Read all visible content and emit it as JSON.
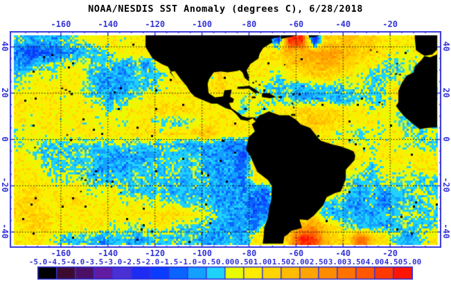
{
  "title": "NOAA/NESDIS SST Anomaly (degrees C), 6/28/2018",
  "colors": {
    "accent_blue": "#3434d8",
    "land": "#000000",
    "background": "#ffffff",
    "gridline": "#000000"
  },
  "axes": {
    "top_tick_labels": [
      "-160",
      "-140",
      "-120",
      "-100",
      "-80",
      "-60",
      "-40",
      "-20"
    ],
    "bottom_tick_labels": [
      "-160",
      "-140",
      "-120",
      "-100",
      "-80",
      "-60",
      "-40",
      "-20"
    ],
    "left_tick_labels": [
      "40",
      "20",
      "0",
      "-20",
      "-40"
    ],
    "right_tick_labels": [
      "40",
      "20",
      "0",
      "-20",
      "-40"
    ],
    "lon_tick_values": [
      -160,
      -140,
      -120,
      -100,
      -80,
      -60,
      -40,
      -20
    ],
    "lat_tick_values": [
      40,
      20,
      0,
      -20,
      -40
    ]
  },
  "colorbar": {
    "labels": [
      "-5.0",
      "-4.5",
      "-4.0",
      "-3.5",
      "-3.0",
      "-2.5",
      "-2.0",
      "-1.5",
      "-1.0",
      "-0.5",
      "0.00",
      "0.50",
      "1.00",
      "1.50",
      "2.00",
      "2.50",
      "3.00",
      "3.50",
      "4.00",
      "4.50",
      "5.00"
    ],
    "colors": [
      "#000000",
      "#3c0c30",
      "#4b1066",
      "#611ba0",
      "#4a30d2",
      "#1e2bf2",
      "#0a3cff",
      "#0a64ff",
      "#13a0ff",
      "#1fd2fc",
      "#e8fb00",
      "#ffec00",
      "#ffd400",
      "#ffbc00",
      "#ffa400",
      "#ff8c00",
      "#ff7200",
      "#ff5800",
      "#ff3a00",
      "#ff1400"
    ],
    "min": -5.0,
    "max": 5.0,
    "step": 0.5
  },
  "chart_data": {
    "type": "heatmap",
    "title": "NOAA/NESDIS SST Anomaly (degrees C), 6/28/2018",
    "date": "6/28/2018",
    "units": "degrees C",
    "lon_range": [
      -180,
      0
    ],
    "lat_range": [
      -45,
      45
    ],
    "grid_cell_degrees": 5,
    "value_encoding": "each char is a palette index 0-9,A-J; cell value = -5 + 0.5*index .. -4.5 + 0.5*index degrees C; rows from 45N to 45S, cols from 180W to 0",
    "anomaly_grid": {
      "cols": 36,
      "rows": 18,
      "rows_chars": [
        "98989AABBABBBBBBBBBBBB6JI5CCDCCBBBBB",
        "76778899ABBBBBBBBBBBBBCDDEEEDCCBBABB",
        "8899AA999898BBBBBBBBBBBCDDEDCBBA9AAA",
        "9AAABB9888999BBB9CBBBB9BBCCBBA99AAAA",
        "ABBBBA988899ABBBBCBBA99989999A9ABAAA",
        "BBBBABA989ABBBBBBBBABA9988989999BAAA",
        "BBBBBBBAABBBCCCBBBB9AABBCCCCBBABA9AA",
        "BABBABAABABB999ABBBBBBBBCDCCBBBAA9AA",
        "ABBBBBBBBBBCBCBCDBBBBBBBBBBAA9AABA9A",
        "AA999999999999888877BBBBBBBBBAABAAA9",
        "BA999998888899998886BBBBBBBBBBABBBBB",
        "BBA99998889999998887BBBBBBBBBA9ABABB",
        "BBBAAA99999999899887BBBBBBBB999A9A99",
        "BCBBBBAAB9999898888877BBBBBB989899A9",
        "CCBBBCBBBABAAA99988877BBBB998897999A",
        "CCCBBBBBBBBBCCCBA98877BBBB9898899A99",
        "BCCBBBBBAAAABA9998887BBBDECB98989999",
        "BBBA99989989999988 98BBBDJIDCCHCB989B"
      ]
    },
    "geo": {
      "land_polygons": {
        "north_america": [
          [
            -124,
            45
          ],
          [
            -124,
            40
          ],
          [
            -121,
            35
          ],
          [
            -117,
            32.5
          ],
          [
            -114.5,
            31.5
          ],
          [
            -112,
            27
          ],
          [
            -109.8,
            23.2
          ],
          [
            -110.5,
            24.5
          ],
          [
            -112.5,
            27.5
          ],
          [
            -113.8,
            29.2
          ],
          [
            -111.5,
            29.5
          ],
          [
            -109,
            26
          ],
          [
            -106.5,
            23
          ],
          [
            -105,
            20.5
          ],
          [
            -103,
            18.5
          ],
          [
            -96,
            15.5
          ],
          [
            -93.5,
            15.5
          ],
          [
            -90,
            13.5
          ],
          [
            -87.5,
            12.8
          ],
          [
            -85.5,
            11
          ],
          [
            -83.5,
            8.5
          ],
          [
            -80.5,
            8
          ],
          [
            -78.5,
            9.2
          ],
          [
            -77.2,
            7.8
          ],
          [
            -77,
            9.2
          ],
          [
            -78.2,
            9.6
          ],
          [
            -81,
            9.5
          ],
          [
            -83,
            10.2
          ],
          [
            -83.8,
            11
          ],
          [
            -87.5,
            13.5
          ],
          [
            -88.5,
            15.8
          ],
          [
            -86.8,
            16
          ],
          [
            -86.4,
            17.5
          ],
          [
            -88,
            18.5
          ],
          [
            -87.4,
            21.5
          ],
          [
            -90.5,
            21.2
          ],
          [
            -91,
            18.6
          ],
          [
            -94.5,
            18.2
          ],
          [
            -97.2,
            20
          ],
          [
            -97.6,
            24
          ],
          [
            -97,
            26
          ],
          [
            -95,
            29
          ],
          [
            -92,
            29.4
          ],
          [
            -89,
            29
          ],
          [
            -85,
            29.6
          ],
          [
            -84,
            30
          ],
          [
            -82.8,
            29
          ],
          [
            -81.8,
            26.5
          ],
          [
            -80.2,
            25.2
          ],
          [
            -80,
            27
          ],
          [
            -81,
            29.8
          ],
          [
            -79.5,
            32.5
          ],
          [
            -76,
            35
          ],
          [
            -75.5,
            37
          ],
          [
            -74,
            39.5
          ],
          [
            -71,
            41.4
          ],
          [
            -70,
            42
          ],
          [
            -70.5,
            43.5
          ],
          [
            -66.5,
            44.4
          ],
          [
            -67,
            45
          ]
        ],
        "nova_scotia": [
          [
            -66.5,
            43.4
          ],
          [
            -63,
            44.2
          ],
          [
            -59.5,
            45
          ],
          [
            -66.5,
            45
          ]
        ],
        "newfoundland": [
          [
            -55,
            45
          ],
          [
            -53,
            44.2
          ],
          [
            -50.5,
            44.6
          ],
          [
            -50,
            45
          ]
        ],
        "south_america": [
          [
            -77.2,
            7.8
          ],
          [
            -78.8,
            6.5
          ],
          [
            -77.5,
            3.5
          ],
          [
            -80.2,
            1
          ],
          [
            -80.5,
            -1
          ],
          [
            -81.3,
            -4.5
          ],
          [
            -79.5,
            -7
          ],
          [
            -76.5,
            -14
          ],
          [
            -72,
            -17.5
          ],
          [
            -70.3,
            -20
          ],
          [
            -70.5,
            -26
          ],
          [
            -71.5,
            -30
          ],
          [
            -72,
            -34
          ],
          [
            -73.5,
            -38
          ],
          [
            -73.8,
            -42
          ],
          [
            -74.2,
            -45
          ],
          [
            -65.5,
            -45
          ],
          [
            -65,
            -42
          ],
          [
            -63.5,
            -41
          ],
          [
            -62,
            -39.5
          ],
          [
            -57.5,
            -38.2
          ],
          [
            -58.5,
            -34.5
          ],
          [
            -55,
            -34.8
          ],
          [
            -52.5,
            -33
          ],
          [
            -48.5,
            -28.5
          ],
          [
            -47,
            -25
          ],
          [
            -43.5,
            -23.2
          ],
          [
            -41,
            -22.5
          ],
          [
            -39,
            -17.5
          ],
          [
            -38.8,
            -13
          ],
          [
            -35.2,
            -9
          ],
          [
            -34.8,
            -7
          ],
          [
            -35.5,
            -5.2
          ],
          [
            -37,
            -4.5
          ],
          [
            -41,
            -3
          ],
          [
            -44.5,
            -2.2
          ],
          [
            -49.5,
            -0.5
          ],
          [
            -50.5,
            0.5
          ],
          [
            -52,
            2.5
          ],
          [
            -54,
            5
          ],
          [
            -58,
            6.5
          ],
          [
            -60,
            8.5
          ],
          [
            -63,
            10.5
          ],
          [
            -67,
            10.5
          ],
          [
            -70,
            11.5
          ],
          [
            -71.5,
            12.2
          ],
          [
            -74,
            11
          ],
          [
            -75.5,
            10.5
          ],
          [
            -77,
            8.8
          ]
        ],
        "africa": [
          [
            0,
            36.8
          ],
          [
            -3,
            35.5
          ],
          [
            -5.5,
            36
          ],
          [
            -6.5,
            34.5
          ],
          [
            -9.5,
            31.5
          ],
          [
            -10,
            29
          ],
          [
            -13,
            27.5
          ],
          [
            -15,
            24.5
          ],
          [
            -16.5,
            21
          ],
          [
            -16.5,
            16
          ],
          [
            -17.5,
            14.5
          ],
          [
            -16,
            12.3
          ],
          [
            -13.5,
            9.5
          ],
          [
            -10,
            6.5
          ],
          [
            -7.5,
            4.5
          ],
          [
            -4,
            5
          ],
          [
            0,
            5.2
          ]
        ],
        "iberia_france": [
          [
            -9.5,
            43.8
          ],
          [
            -9,
            38.6
          ],
          [
            -6.8,
            37
          ],
          [
            -5.3,
            36.1
          ],
          [
            -2.1,
            36.7
          ],
          [
            0,
            38.7
          ],
          [
            0,
            45
          ],
          [
            -9.5,
            45
          ]
        ],
        "cuba": [
          [
            -84.9,
            22.7
          ],
          [
            -83,
            22.9
          ],
          [
            -80,
            23.2
          ],
          [
            -77.5,
            21.8
          ],
          [
            -75.5,
            20.2
          ],
          [
            -77.5,
            20
          ],
          [
            -80,
            22
          ],
          [
            -83,
            21.8
          ],
          [
            -84.9,
            21.9
          ]
        ],
        "hispaniola": [
          [
            -74.5,
            19.9
          ],
          [
            -71.5,
            20
          ],
          [
            -68.5,
            18.3
          ],
          [
            -71,
            17.8
          ],
          [
            -74.5,
            18.3
          ]
        ]
      },
      "island_specks_lon_lat_w_h": [
        [
          -159.5,
          22.1,
          1,
          0.6
        ],
        [
          -157.9,
          21.4,
          0.9,
          0.6
        ],
        [
          -156.3,
          20.7,
          1,
          0.6
        ],
        [
          -155.4,
          19.6,
          1,
          0.9
        ],
        [
          -157.3,
          1.9,
          0.7,
          0.5
        ],
        [
          -171,
          -3.5,
          0.7,
          0.5
        ],
        [
          -149.5,
          -17.6,
          1,
          0.6
        ],
        [
          -151,
          -16.7,
          0.8,
          0.5
        ],
        [
          -146,
          -15.2,
          0.7,
          0.5
        ],
        [
          -145,
          -17.5,
          0.7,
          0.5
        ],
        [
          -140.5,
          -18,
          0.8,
          0.5
        ],
        [
          -138.5,
          -20.5,
          0.7,
          0.5
        ],
        [
          -151.5,
          -22.5,
          0.7,
          0.5
        ],
        [
          -134.5,
          -23,
          0.8,
          0.6
        ],
        [
          -91,
          -0.6,
          1.3,
          0.9
        ],
        [
          -78,
          18.2,
          1.6,
          0.7
        ],
        [
          -66.8,
          18.3,
          1.5,
          0.7
        ],
        [
          -78.2,
          24.5,
          0.8,
          0.5
        ],
        [
          -77,
          25.1,
          0.6,
          0.5
        ],
        [
          -75.5,
          23.6,
          0.8,
          0.5
        ],
        [
          -61.5,
          15.5,
          0.6,
          0.8
        ],
        [
          -61,
          13.8,
          0.5,
          0.7
        ],
        [
          -61.2,
          10.6,
          1.8,
          0.8
        ],
        [
          -24.5,
          16,
          0.9,
          0.6
        ],
        [
          -23.3,
          15.2,
          0.7,
          0.5
        ],
        [
          -17.5,
          28.3,
          0.9,
          0.5
        ],
        [
          -15.8,
          28,
          0.9,
          0.5
        ],
        [
          -17,
          32.7,
          0.7,
          0.5
        ],
        [
          -64.8,
          32.3,
          0.6,
          0.4
        ],
        [
          -28.2,
          38.6,
          0.6,
          0.4
        ],
        [
          -25.6,
          37.8,
          0.6,
          0.4
        ]
      ]
    },
    "legend_position": "bottom",
    "grid_on": true
  }
}
